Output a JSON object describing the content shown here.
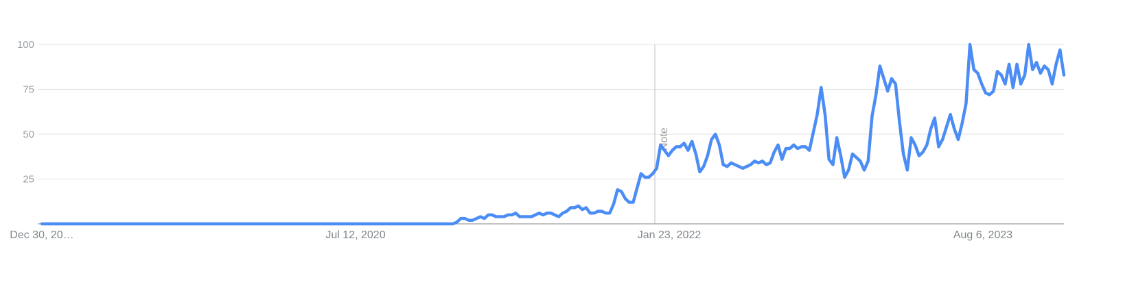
{
  "chart_data": {
    "type": "line",
    "title": "",
    "xlabel": "",
    "ylabel": "",
    "x_tick_labels": [
      "Dec 30, 20…",
      "Jul 12, 2020",
      "Jan 23, 2022",
      "Aug 6, 2023"
    ],
    "y_ticks": [
      25,
      50,
      75,
      100
    ],
    "ylim": [
      0,
      100
    ],
    "grid": true,
    "annotation": {
      "text": "Note",
      "at_tick": "Jan 23, 2022"
    },
    "colors": {
      "series": "#4c8df5",
      "grid": "#e0e0e0",
      "axis": "#9e9e9e",
      "tick_text": "#9aa0a6",
      "x_label_text": "#80868b"
    },
    "series": [
      {
        "values": [
          0,
          0,
          0,
          0,
          0,
          0,
          0,
          0,
          0,
          0,
          0,
          0,
          0,
          0,
          0,
          0,
          0,
          0,
          0,
          0,
          0,
          0,
          0,
          0,
          0,
          0,
          0,
          0,
          0,
          0,
          0,
          0,
          0,
          0,
          0,
          0,
          0,
          0,
          0,
          0,
          0,
          0,
          0,
          0,
          0,
          0,
          0,
          0,
          0,
          0,
          0,
          0,
          0,
          0,
          0,
          0,
          0,
          0,
          0,
          0,
          0,
          0,
          0,
          0,
          0,
          0,
          0,
          0,
          0,
          0,
          0,
          0,
          0,
          0,
          0,
          0,
          0,
          0,
          0,
          0,
          0,
          0,
          0,
          0,
          0,
          0,
          0,
          0,
          0,
          0,
          0,
          0,
          0,
          0,
          0,
          0,
          0,
          0,
          0,
          0,
          0,
          0,
          0,
          0,
          0,
          0,
          1,
          3,
          3,
          2,
          2,
          3,
          4,
          3,
          5,
          5,
          4,
          4,
          4,
          5,
          5,
          6,
          4,
          4,
          4,
          4,
          5,
          6,
          5,
          6,
          6,
          5,
          4,
          6,
          7,
          9,
          9,
          10,
          8,
          9,
          6,
          6,
          7,
          7,
          6,
          6,
          11,
          19,
          18,
          14,
          12,
          12,
          20,
          28,
          26,
          26,
          28,
          31,
          44,
          41,
          38,
          41,
          43,
          43,
          45,
          41,
          46,
          39,
          29,
          32,
          38,
          47,
          50,
          44,
          33,
          32,
          34,
          33,
          32,
          31,
          32,
          33,
          35,
          34,
          35,
          33,
          34,
          40,
          44,
          36,
          42,
          42,
          44,
          42,
          43,
          43,
          41,
          51,
          61,
          76,
          61,
          36,
          33,
          48,
          38,
          26,
          30,
          39,
          37,
          35,
          30,
          35,
          60,
          72,
          88,
          81,
          74,
          81,
          78,
          57,
          39,
          30,
          48,
          44,
          38,
          40,
          44,
          53,
          59,
          43,
          47,
          54,
          61,
          53,
          47,
          56,
          67,
          100,
          86,
          84,
          78,
          73,
          72,
          74,
          85,
          83,
          78,
          89,
          76,
          89,
          78,
          83,
          100,
          86,
          90,
          84,
          88,
          86,
          78,
          89,
          97,
          83
        ]
      }
    ]
  }
}
